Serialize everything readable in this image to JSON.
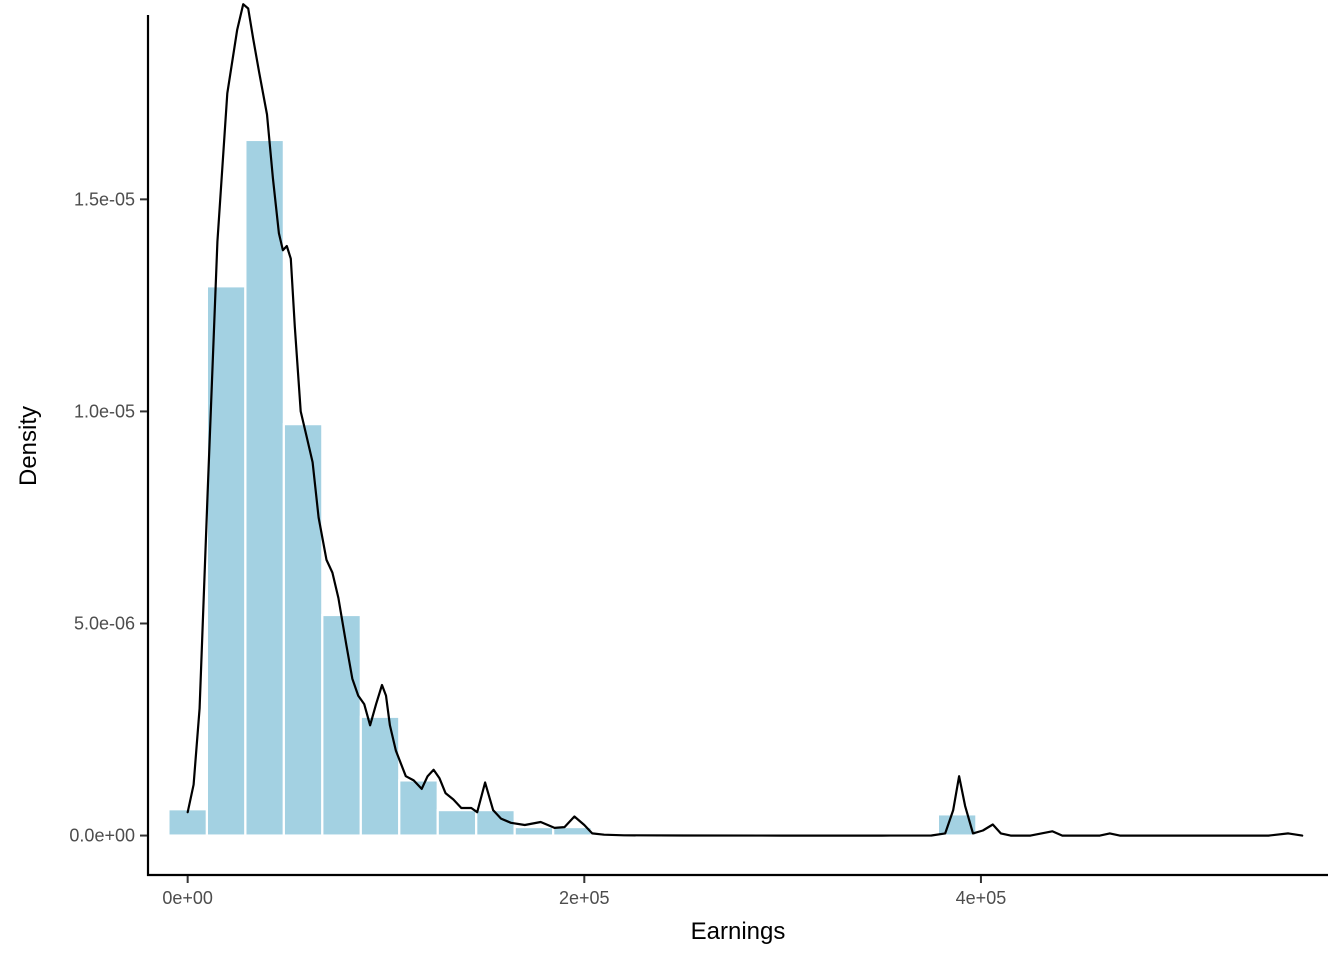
{
  "chart_data": {
    "type": "bar",
    "title": "",
    "xlabel": "Earnings",
    "ylabel": "Density",
    "xlim": [
      -20000,
      575000
    ],
    "ylim": [
      -9.3e-07,
      1.97e-05
    ],
    "x_ticks": [
      {
        "value": 0,
        "label": "0e+00"
      },
      {
        "value": 200000,
        "label": "2e+05"
      },
      {
        "value": 400000,
        "label": "4e+05"
      }
    ],
    "y_ticks": [
      {
        "value": 0,
        "label": "0.0e+00"
      },
      {
        "value": 5e-06,
        "label": "5.0e-06"
      },
      {
        "value": 1e-05,
        "label": "1.0e-05"
      },
      {
        "value": 1.5e-05,
        "label": "1.5e-05"
      }
    ],
    "bin_width": 19400,
    "histogram": {
      "name": "histogram",
      "color": "#a3d1e2",
      "bins": [
        {
          "x": 0,
          "density": 6.2e-07
        },
        {
          "x": 19400,
          "density": 1.295e-05
        },
        {
          "x": 38800,
          "density": 1.64e-05
        },
        {
          "x": 58200,
          "density": 9.7e-06
        },
        {
          "x": 77600,
          "density": 5.2e-06
        },
        {
          "x": 97000,
          "density": 2.8e-06
        },
        {
          "x": 116400,
          "density": 1.3e-06
        },
        {
          "x": 135800,
          "density": 6e-07
        },
        {
          "x": 155200,
          "density": 6e-07
        },
        {
          "x": 174600,
          "density": 2e-07
        },
        {
          "x": 194000,
          "density": 2e-07
        },
        {
          "x": 388000,
          "density": 5e-07
        }
      ]
    },
    "density_curve": {
      "name": "density",
      "color": "#000000",
      "x": [
        0,
        3000,
        6000,
        10000,
        15000,
        20000,
        25000,
        28000,
        30500,
        33000,
        36000,
        40000,
        43000,
        46000,
        48000,
        50000,
        52000,
        54000,
        57000,
        60000,
        63000,
        66000,
        70000,
        73000,
        76000,
        80000,
        83000,
        86000,
        89000,
        92000,
        95000,
        98000,
        100000,
        102000,
        105000,
        110000,
        114000,
        118000,
        121000,
        124000,
        127000,
        130000,
        134000,
        138000,
        143000,
        146000,
        150000,
        154000,
        158000,
        163000,
        170000,
        178000,
        185000,
        190000,
        195000,
        200000,
        204000,
        210000,
        220000,
        250000,
        300000,
        350000,
        375000,
        382000,
        386000,
        389000,
        392000,
        396000,
        401000,
        406000,
        410000,
        415000,
        425000,
        436000,
        441000,
        446000,
        460000,
        465000,
        470000,
        500000,
        545000,
        555000,
        562000
      ],
      "y": [
        5.5e-07,
        1.2e-06,
        3e-06,
        8e-06,
        1.4e-05,
        1.75e-05,
        1.9e-05,
        1.96e-05,
        1.95e-05,
        1.88e-05,
        1.8e-05,
        1.7e-05,
        1.55e-05,
        1.42e-05,
        1.38e-05,
        1.39e-05,
        1.36e-05,
        1.2e-05,
        1e-05,
        9.4e-06,
        8.8e-06,
        7.5e-06,
        6.5e-06,
        6.2e-06,
        5.6e-06,
        4.5e-06,
        3.7e-06,
        3.3e-06,
        3.1e-06,
        2.6e-06,
        3.1e-06,
        3.55e-06,
        3.3e-06,
        2.6e-06,
        2e-06,
        1.4e-06,
        1.3e-06,
        1.1e-06,
        1.4e-06,
        1.55e-06,
        1.35e-06,
        1e-06,
        8.5e-07,
        6.5e-07,
        6.5e-07,
        5.5e-07,
        1.25e-06,
        6e-07,
        4e-07,
        3e-07,
        2.5e-07,
        3.2e-07,
        1.8e-07,
        2e-07,
        4.5e-07,
        2.5e-07,
        5e-08,
        2e-08,
        5e-09,
        1e-09,
        0,
        0,
        2e-09,
        5e-08,
        6e-07,
        1.4e-06,
        7e-07,
        5e-08,
        1.2e-07,
        2.6e-07,
        5e-08,
        0,
        0,
        1e-07,
        0,
        0,
        0,
        5e-08,
        0,
        0,
        0,
        5e-08,
        0
      ]
    }
  }
}
